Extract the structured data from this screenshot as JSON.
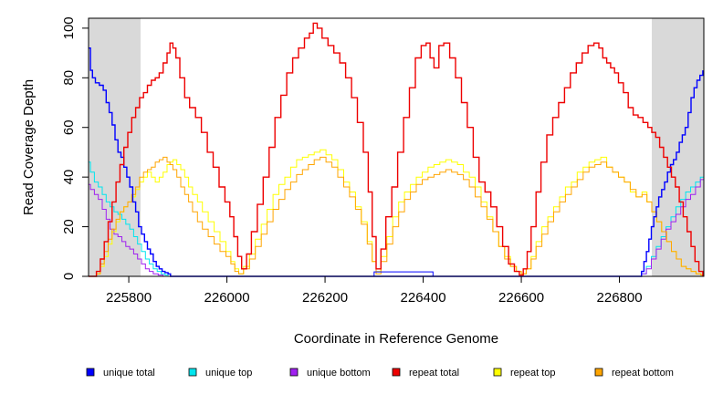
{
  "chart_data": {
    "type": "line",
    "title": "",
    "xlabel": "Coordinate in Reference Genome",
    "ylabel": "Read Coverage Depth",
    "xlim": [
      225718,
      226972
    ],
    "ylim": [
      0,
      104
    ],
    "x_ticks": [
      "225800",
      "226000",
      "226200",
      "226400",
      "226600",
      "226800"
    ],
    "y_ticks": [
      "0",
      "20",
      "40",
      "60",
      "80",
      "100"
    ],
    "grid": false,
    "legend_position": "bottom",
    "shaded_regions": [
      {
        "x_start": 225718,
        "x_end": 225824,
        "color": "#d9d9d9"
      },
      {
        "x_start": 226866,
        "x_end": 226972,
        "color": "#d9d9d9"
      }
    ],
    "feature_box": {
      "x_start": 226300,
      "x_end": 226420,
      "y_start": 0,
      "y_end": 1.8,
      "color": "#0000ff"
    },
    "series": [
      {
        "name": "unique total",
        "color": "#0000ff",
        "x": [
          225718,
          225722,
          225726,
          225732,
          225740,
          225748,
          225754,
          225760,
          225766,
          225772,
          225778,
          225784,
          225790,
          225796,
          225802,
          225808,
          225814,
          225820,
          225826,
          225832,
          225838,
          225844,
          225850,
          225856,
          225862,
          225868,
          225874,
          225880,
          225885,
          226300,
          226840,
          226845,
          226850,
          226855,
          226860,
          226865,
          226870,
          226875,
          226880,
          226886,
          226892,
          226898,
          226904,
          226910,
          226916,
          226922,
          226928,
          226934,
          226940,
          226946,
          226952,
          226958,
          226964,
          226970
        ],
        "y": [
          92,
          83,
          80,
          78,
          77,
          75,
          70,
          66,
          61,
          55,
          50,
          48,
          44,
          40,
          36,
          30,
          26,
          20,
          17,
          14,
          11,
          9,
          6,
          4,
          3,
          2,
          1.5,
          1,
          0,
          0,
          0,
          2,
          6,
          10,
          15,
          20,
          24,
          28,
          32,
          35,
          38,
          42,
          45,
          47,
          50,
          54,
          57,
          60,
          66,
          72,
          76,
          79,
          81,
          83
        ]
      },
      {
        "name": "unique top",
        "color": "#00e5ee",
        "x": [
          225718,
          225722,
          225730,
          225738,
          225746,
          225754,
          225762,
          225770,
          225778,
          225786,
          225794,
          225802,
          225810,
          225818,
          225826,
          225834,
          225842,
          225850,
          225858,
          225866,
          225874,
          225880,
          226300,
          226845,
          226855,
          226865,
          226875,
          226885,
          226895,
          226905,
          226915,
          226925,
          226935,
          226945,
          226955,
          226965,
          226972
        ],
        "y": [
          46,
          42,
          38,
          36,
          33,
          30,
          28,
          26,
          25,
          23,
          21,
          19,
          16,
          13,
          10,
          7,
          5,
          3,
          2,
          1,
          0.5,
          0,
          0,
          1,
          4,
          8,
          12,
          16,
          20,
          24,
          28,
          31,
          34,
          36,
          38,
          40,
          41
        ]
      },
      {
        "name": "unique bottom",
        "color": "#a020f0",
        "x": [
          225718,
          225722,
          225730,
          225738,
          225746,
          225754,
          225762,
          225770,
          225778,
          225786,
          225794,
          225802,
          225810,
          225818,
          225826,
          225834,
          225842,
          225850,
          225860,
          225870,
          226300,
          226845,
          226855,
          226865,
          226875,
          226885,
          226895,
          226905,
          226915,
          226925,
          226935,
          226945,
          226955,
          226965,
          226972
        ],
        "y": [
          37,
          35,
          33,
          31,
          27,
          23,
          19,
          17,
          16,
          14,
          12,
          11,
          9,
          7,
          5,
          3,
          2,
          1,
          0.5,
          0,
          0,
          1,
          3,
          7,
          11,
          15,
          19,
          22,
          25,
          28,
          31,
          33,
          36,
          39,
          41
        ]
      },
      {
        "name": "repeat total",
        "color": "#ee0000",
        "x": [
          225718,
          225726,
          225734,
          225742,
          225750,
          225758,
          225766,
          225774,
          225782,
          225790,
          225798,
          225806,
          225814,
          225822,
          225830,
          225838,
          225846,
          225854,
          225862,
          225870,
          225878,
          225884,
          225890,
          225896,
          225904,
          225914,
          225924,
          225936,
          225948,
          225960,
          225972,
          225984,
          225996,
          226006,
          226014,
          226022,
          226030,
          226040,
          226050,
          226062,
          226074,
          226086,
          226098,
          226110,
          226122,
          226134,
          226146,
          226158,
          226168,
          226176,
          226184,
          226194,
          226206,
          226218,
          226230,
          226242,
          226254,
          226266,
          226278,
          226288,
          226296,
          226304,
          226314,
          226324,
          226336,
          226348,
          226360,
          226372,
          226384,
          226396,
          226406,
          226414,
          226422,
          226432,
          226442,
          226454,
          226466,
          226478,
          226490,
          226502,
          226514,
          226526,
          226538,
          226550,
          226562,
          226574,
          226586,
          226596,
          226604,
          226612,
          226620,
          226630,
          226640,
          226652,
          226664,
          226676,
          226688,
          226700,
          226712,
          226724,
          226736,
          226748,
          226758,
          226766,
          226774,
          226782,
          226790,
          226798,
          226808,
          226818,
          226828,
          226838,
          226848,
          226858,
          226866,
          226874,
          226882,
          226890,
          226898,
          226906,
          226914,
          226922,
          226930,
          226938,
          226946,
          226954,
          226962,
          226970
        ],
        "y": [
          0,
          0,
          2,
          7,
          14,
          22,
          30,
          38,
          45,
          52,
          58,
          64,
          68,
          72,
          74,
          77,
          79,
          80,
          82,
          86,
          90,
          94,
          92,
          88,
          80,
          72,
          68,
          64,
          58,
          50,
          44,
          36,
          30,
          24,
          16,
          8,
          3,
          9,
          18,
          29,
          40,
          52,
          64,
          73,
          82,
          88,
          92,
          96,
          98,
          102,
          100,
          96,
          93,
          90,
          86,
          80,
          72,
          62,
          50,
          34,
          16,
          3,
          11,
          24,
          36,
          50,
          64,
          76,
          88,
          93,
          94,
          88,
          84,
          93,
          94,
          88,
          80,
          70,
          60,
          48,
          38,
          34,
          28,
          20,
          12,
          5,
          2,
          0.5,
          3,
          10,
          20,
          34,
          46,
          57,
          64,
          70,
          76,
          82,
          86,
          90,
          93,
          94,
          92,
          88,
          86,
          84,
          82,
          78,
          74,
          68,
          65,
          64,
          62,
          60,
          58,
          56,
          52,
          48,
          44,
          40,
          36,
          30,
          24,
          18,
          12,
          6,
          2,
          0
        ]
      },
      {
        "name": "repeat top",
        "color": "#ffff00",
        "x": [
          225718,
          225726,
          225734,
          225742,
          225750,
          225758,
          225766,
          225774,
          225782,
          225790,
          225798,
          225806,
          225814,
          225822,
          225830,
          225838,
          225846,
          225854,
          225862,
          225870,
          225878,
          225884,
          225890,
          225898,
          225906,
          225914,
          225922,
          225930,
          225940,
          225950,
          225962,
          225974,
          225986,
          225998,
          226008,
          226016,
          226024,
          226034,
          226046,
          226058,
          226070,
          226082,
          226094,
          226106,
          226118,
          226130,
          226142,
          226154,
          226166,
          226178,
          226190,
          226202,
          226214,
          226226,
          226238,
          226250,
          226262,
          226274,
          226286,
          226296,
          226304,
          226314,
          226326,
          226338,
          226350,
          226362,
          226374,
          226386,
          226398,
          226410,
          226422,
          226434,
          226446,
          226458,
          226470,
          226482,
          226494,
          226506,
          226518,
          226530,
          226542,
          226554,
          226566,
          226578,
          226590,
          226600,
          226610,
          226620,
          226630,
          226642,
          226654,
          226666,
          226678,
          226690,
          226702,
          226714,
          226726,
          226738,
          226750,
          226762,
          226774,
          226786,
          226798,
          226810,
          226822,
          226834,
          226846,
          226856,
          226866,
          226876,
          226886,
          226896,
          226906,
          226916,
          226926,
          226936,
          226946,
          226956,
          226966,
          226972
        ],
        "y": [
          0,
          0,
          1,
          4,
          8,
          13,
          18,
          22,
          26,
          28,
          30,
          32,
          35,
          38,
          40,
          42,
          40,
          38,
          40,
          42,
          45,
          46,
          47,
          45,
          43,
          40,
          36,
          33,
          30,
          26,
          22,
          18,
          14,
          10,
          6,
          3,
          1,
          4,
          9,
          15,
          21,
          27,
          33,
          37,
          40,
          44,
          47,
          48,
          49,
          50,
          51,
          49,
          47,
          43,
          38,
          34,
          28,
          22,
          14,
          6,
          2,
          8,
          16,
          24,
          30,
          34,
          37,
          40,
          42,
          44,
          45,
          46,
          47,
          46,
          45,
          42,
          40,
          36,
          30,
          24,
          18,
          12,
          8,
          4,
          2,
          1,
          3,
          8,
          14,
          20,
          24,
          28,
          32,
          36,
          38,
          42,
          44,
          46,
          47,
          48,
          44,
          42,
          40,
          38,
          34,
          32,
          34,
          30,
          26,
          22,
          18,
          14,
          10,
          7,
          4,
          3,
          2,
          1,
          0.5,
          0
        ]
      },
      {
        "name": "repeat bottom",
        "color": "#ffa500",
        "x": [
          225718,
          225726,
          225734,
          225742,
          225750,
          225758,
          225766,
          225774,
          225782,
          225790,
          225798,
          225806,
          225814,
          225822,
          225830,
          225838,
          225846,
          225854,
          225862,
          225870,
          225878,
          225884,
          225890,
          225898,
          225906,
          225914,
          225922,
          225930,
          225940,
          225950,
          225962,
          225974,
          225986,
          225998,
          226008,
          226016,
          226024,
          226034,
          226046,
          226058,
          226070,
          226082,
          226094,
          226106,
          226118,
          226130,
          226142,
          226154,
          226166,
          226178,
          226190,
          226202,
          226214,
          226226,
          226238,
          226250,
          226262,
          226274,
          226286,
          226296,
          226304,
          226314,
          226326,
          226338,
          226350,
          226362,
          226374,
          226386,
          226398,
          226410,
          226422,
          226434,
          226446,
          226458,
          226470,
          226482,
          226494,
          226506,
          226518,
          226530,
          226542,
          226554,
          226566,
          226578,
          226590,
          226600,
          226610,
          226620,
          226630,
          226642,
          226654,
          226666,
          226678,
          226690,
          226702,
          226714,
          226726,
          226738,
          226750,
          226762,
          226774,
          226786,
          226798,
          226810,
          226822,
          226834,
          226846,
          226856,
          226866,
          226876,
          226886,
          226896,
          226906,
          226916,
          226926,
          226936,
          226946,
          226956,
          226966,
          226972
        ],
        "y": [
          0,
          0,
          1,
          5,
          10,
          15,
          19,
          23,
          26,
          28,
          30,
          33,
          36,
          40,
          42,
          43,
          44,
          46,
          47,
          48,
          46,
          45,
          43,
          40,
          36,
          33,
          30,
          26,
          22,
          19,
          16,
          13,
          10,
          8,
          5,
          2,
          1,
          3,
          7,
          12,
          17,
          22,
          27,
          31,
          35,
          38,
          41,
          43,
          45,
          47,
          48,
          46,
          44,
          40,
          36,
          32,
          27,
          21,
          13,
          6,
          1,
          6,
          13,
          20,
          26,
          31,
          34,
          37,
          39,
          40,
          41,
          42,
          43,
          42,
          41,
          39,
          36,
          32,
          28,
          23,
          18,
          12,
          7,
          4,
          2,
          1,
          3,
          7,
          12,
          17,
          22,
          26,
          30,
          33,
          36,
          39,
          42,
          44,
          45,
          46,
          44,
          42,
          40,
          38,
          35,
          32,
          33,
          30,
          26,
          22,
          18,
          14,
          10,
          7,
          4,
          3,
          2,
          1,
          0.5,
          0
        ]
      }
    ]
  }
}
